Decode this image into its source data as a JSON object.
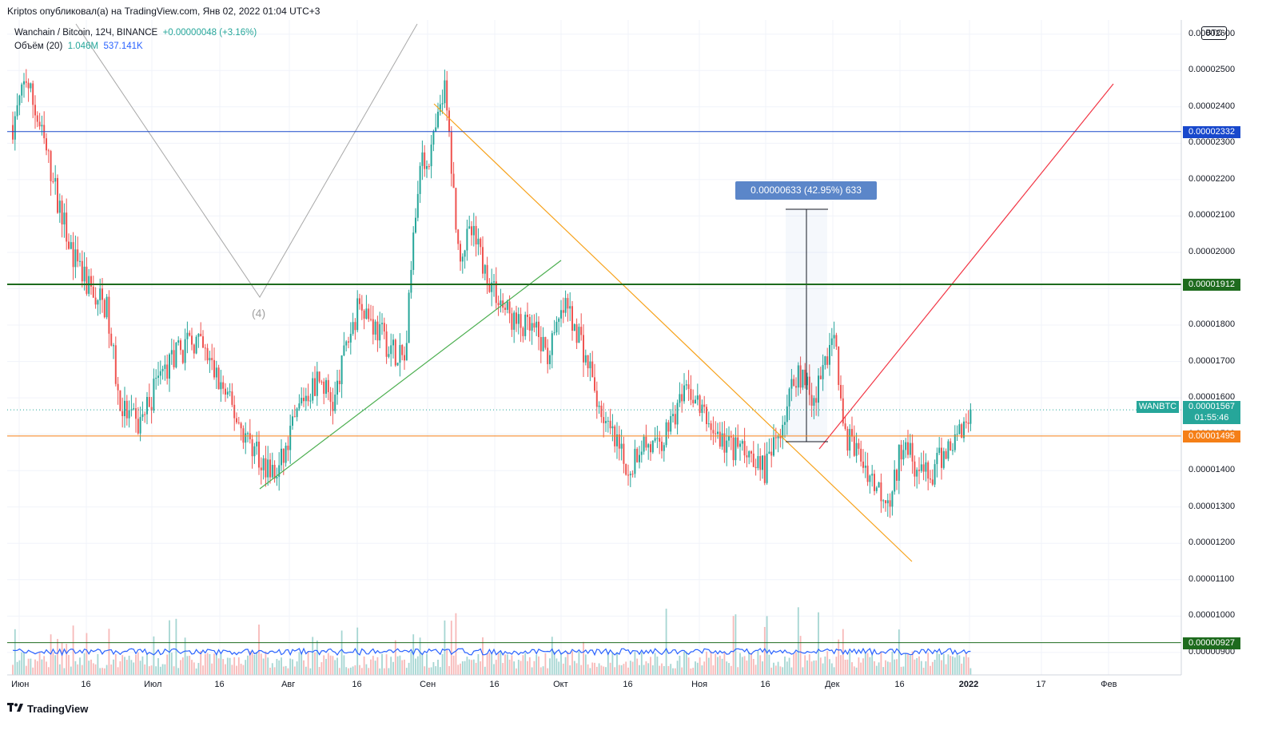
{
  "header": {
    "publisher_line": "Kriptos опубликовал(а) на TradingView.com, Янв 02, 2022 01:04 UTC+3"
  },
  "legend": {
    "symbol": "Wanchain / Bitcoin, 12Ч, BINANCE",
    "change": "+0.00000048 (+3.16%)",
    "volume_label": "Объём (20)",
    "volume_value": "1.046M",
    "volume_ma": "537.141K"
  },
  "footer": {
    "brand": "TradingView"
  },
  "chart_data": {
    "type": "candlestick",
    "symbol": "WANBTC",
    "timeframe": "12H",
    "exchange": "BINANCE",
    "currency_badge": "BTC",
    "x_ticks": [
      "Июн",
      "16",
      "Июл",
      "16",
      "Авг",
      "16",
      "Сен",
      "16",
      "Окт",
      "16",
      "Ноя",
      "16",
      "Дек",
      "16",
      "2022",
      "17",
      "Фев"
    ],
    "y_ticks": [
      "0.00002600",
      "0.00002500",
      "0.00002400",
      "0.00002300",
      "0.00002200",
      "0.00002100",
      "0.00002000",
      "0.00001900",
      "0.00001800",
      "0.00001700",
      "0.00001600",
      "0.00001500",
      "0.00001400",
      "0.00001300",
      "0.00001200",
      "0.00001100",
      "0.00001000",
      "0.00000900"
    ],
    "ylim": [
      8.8e-06,
      2.62e-05
    ],
    "close_path": [
      [
        "2021-06-01",
        2.35e-05
      ],
      [
        "2021-06-04",
        2.48e-05
      ],
      [
        "2021-06-08",
        2.3e-05
      ],
      [
        "2021-06-12",
        2.1e-05
      ],
      [
        "2021-06-15",
        1.97e-05
      ],
      [
        "2021-06-18",
        1.9e-05
      ],
      [
        "2021-06-22",
        1.85e-05
      ],
      [
        "2021-06-25",
        1.58e-05
      ],
      [
        "2021-06-29",
        1.52e-05
      ],
      [
        "2021-07-02",
        1.6e-05
      ],
      [
        "2021-07-05",
        1.68e-05
      ],
      [
        "2021-07-08",
        1.72e-05
      ],
      [
        "2021-07-12",
        1.76e-05
      ],
      [
        "2021-07-15",
        1.7e-05
      ],
      [
        "2021-07-19",
        1.6e-05
      ],
      [
        "2021-07-23",
        1.5e-05
      ],
      [
        "2021-07-26",
        1.45e-05
      ],
      [
        "2021-07-30",
        1.38e-05
      ],
      [
        "2021-08-02",
        1.48e-05
      ],
      [
        "2021-08-05",
        1.6e-05
      ],
      [
        "2021-08-09",
        1.65e-05
      ],
      [
        "2021-08-12",
        1.58e-05
      ],
      [
        "2021-08-15",
        1.75e-05
      ],
      [
        "2021-08-18",
        1.87e-05
      ],
      [
        "2021-08-21",
        1.8e-05
      ],
      [
        "2021-08-24",
        1.75e-05
      ],
      [
        "2021-08-28",
        1.7e-05
      ],
      [
        "2021-08-31",
        2.22e-05
      ],
      [
        "2021-09-03",
        2.28e-05
      ],
      [
        "2021-09-06",
        2.45e-05
      ],
      [
        "2021-09-09",
        2e-05
      ],
      [
        "2021-09-12",
        2.05e-05
      ],
      [
        "2021-09-15",
        1.95e-05
      ],
      [
        "2021-09-19",
        1.85e-05
      ],
      [
        "2021-09-22",
        1.8e-05
      ],
      [
        "2021-09-26",
        1.78e-05
      ],
      [
        "2021-09-29",
        1.72e-05
      ],
      [
        "2021-10-03",
        1.85e-05
      ],
      [
        "2021-10-06",
        1.78e-05
      ],
      [
        "2021-10-10",
        1.6e-05
      ],
      [
        "2021-10-13",
        1.5e-05
      ],
      [
        "2021-10-17",
        1.4e-05
      ],
      [
        "2021-10-20",
        1.48e-05
      ],
      [
        "2021-10-24",
        1.45e-05
      ],
      [
        "2021-10-27",
        1.55e-05
      ],
      [
        "2021-10-31",
        1.62e-05
      ],
      [
        "2021-11-03",
        1.55e-05
      ],
      [
        "2021-11-07",
        1.48e-05
      ],
      [
        "2021-11-10",
        1.46e-05
      ],
      [
        "2021-11-14",
        1.45e-05
      ],
      [
        "2021-11-17",
        1.4e-05
      ],
      [
        "2021-11-21",
        1.55e-05
      ],
      [
        "2021-11-24",
        1.68e-05
      ],
      [
        "2021-11-28",
        1.6e-05
      ],
      [
        "2021-12-02",
        1.78e-05
      ],
      [
        "2021-12-05",
        1.5e-05
      ],
      [
        "2021-12-09",
        1.42e-05
      ],
      [
        "2021-12-12",
        1.35e-05
      ],
      [
        "2021-12-15",
        1.33e-05
      ],
      [
        "2021-12-18",
        1.5e-05
      ],
      [
        "2021-12-21",
        1.4e-05
      ],
      [
        "2021-12-24",
        1.38e-05
      ],
      [
        "2021-12-27",
        1.45e-05
      ],
      [
        "2021-12-30",
        1.5e-05
      ],
      [
        "2022-01-02",
        1.57e-05
      ]
    ],
    "horizontal_levels": [
      {
        "price": 2.332e-05,
        "label": "0.00002332",
        "color": "#1848cc"
      },
      {
        "price": 1.912e-05,
        "label": "0.00001912",
        "color": "#1e6b1e"
      },
      {
        "price": 1.495e-05,
        "label": "0.00001495",
        "color": "#f57f17"
      },
      {
        "price": 9.27e-06,
        "label": "0.00000927",
        "color": "#1e6b1e"
      }
    ],
    "current_price": {
      "label": "0.00001567",
      "ticker": "WANBTC",
      "countdown": "01:55:46",
      "color": "#26a69a"
    },
    "measure_label": "0.00000633 (42.95%) 633",
    "wave_label": "(4)",
    "colors": {
      "up": "#26a69a",
      "down": "#ef5350",
      "volume_ma": "#2962ff",
      "trend_down": "#f7a21b",
      "trend_up_green": "#4caf50",
      "trend_up_red": "#f23645",
      "zigzag": "#a8a8a8"
    }
  }
}
